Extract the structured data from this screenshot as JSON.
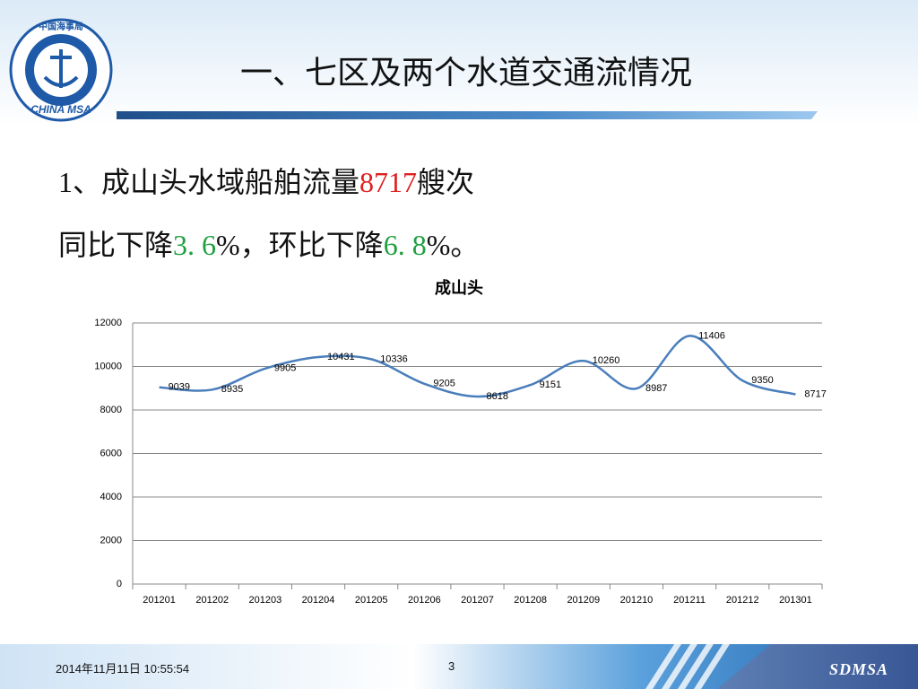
{
  "header": {
    "title": "一、七区及两个水道交通流情况",
    "logo_top": "中国海事局",
    "logo_bottom": "CHINA MSA"
  },
  "text": {
    "line1": [
      "1、成山头水域船舶流量",
      "8717",
      "艘次"
    ],
    "line2": [
      "同比下降",
      "3. 6",
      "%，环比下降",
      "6. 8",
      "%。"
    ]
  },
  "chart_data": {
    "type": "line",
    "title": "成山头",
    "categories": [
      "201201",
      "201202",
      "201203",
      "201204",
      "201205",
      "201206",
      "201207",
      "201208",
      "201209",
      "201210",
      "201211",
      "201212",
      "201301"
    ],
    "values": [
      9039,
      8935,
      9905,
      10431,
      10336,
      9205,
      8618,
      9151,
      10260,
      8987,
      11406,
      9350,
      8717
    ],
    "color": "#4a7ebb",
    "smooth": true,
    "ylim": [
      0,
      12000
    ],
    "yticks": [
      0,
      2000,
      4000,
      6000,
      8000,
      10000,
      12000
    ],
    "grid": true
  },
  "footer": {
    "date": "2014年11月11日  10:55:54",
    "page": "3",
    "brand": "SDMSA"
  }
}
